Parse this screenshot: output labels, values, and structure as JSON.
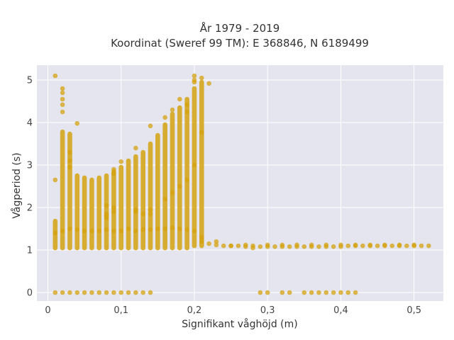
{
  "chart_data": {
    "type": "scatter",
    "title_lines": [
      "År 1979 - 2019",
      "Koordinat (Sweref 99 TM): E 368846, N 6189499"
    ],
    "xlabel": "Signifikant våghöjd (m)",
    "ylabel": "Vågperiod (s)",
    "xlim": [
      -0.015,
      0.54
    ],
    "ylim": [
      -0.2,
      5.35
    ],
    "x_ticks": [
      0,
      0.1,
      0.2,
      0.3,
      0.4,
      0.5
    ],
    "x_tick_labels": [
      "0",
      "0,1",
      "0,2",
      "0,3",
      "0,4",
      "0,5"
    ],
    "y_ticks": [
      0,
      1,
      2,
      3,
      4,
      5
    ],
    "y_tick_labels": [
      "0",
      "1",
      "2",
      "3",
      "4",
      "5"
    ],
    "grid": true,
    "plot_background": "#e5e5ef",
    "marker_color": "#d4a20f",
    "marker_opacity": 0.75,
    "columns": [
      {
        "x": 0.01,
        "min": 1.05,
        "max": 1.68
      },
      {
        "x": 0.02,
        "min": 1.05,
        "max": 3.78
      },
      {
        "x": 0.03,
        "min": 1.05,
        "max": 3.73
      },
      {
        "x": 0.04,
        "min": 1.05,
        "max": 2.75
      },
      {
        "x": 0.05,
        "min": 1.05,
        "max": 2.7
      },
      {
        "x": 0.06,
        "min": 1.05,
        "max": 2.65
      },
      {
        "x": 0.07,
        "min": 1.05,
        "max": 2.7
      },
      {
        "x": 0.08,
        "min": 1.05,
        "max": 2.75
      },
      {
        "x": 0.09,
        "min": 1.05,
        "max": 2.85
      },
      {
        "x": 0.1,
        "min": 1.05,
        "max": 2.95
      },
      {
        "x": 0.11,
        "min": 1.05,
        "max": 3.1
      },
      {
        "x": 0.12,
        "min": 1.05,
        "max": 3.2
      },
      {
        "x": 0.13,
        "min": 1.05,
        "max": 3.3
      },
      {
        "x": 0.14,
        "min": 1.05,
        "max": 3.5
      },
      {
        "x": 0.15,
        "min": 1.05,
        "max": 3.7
      },
      {
        "x": 0.16,
        "min": 1.05,
        "max": 3.95
      },
      {
        "x": 0.17,
        "min": 1.05,
        "max": 4.2
      },
      {
        "x": 0.18,
        "min": 1.05,
        "max": 4.35
      },
      {
        "x": 0.19,
        "min": 1.05,
        "max": 4.55
      },
      {
        "x": 0.2,
        "min": 1.1,
        "max": 4.8
      },
      {
        "x": 0.21,
        "min": 1.1,
        "max": 4.95
      }
    ],
    "points": [
      {
        "x": 0.01,
        "y": 5.1
      },
      {
        "x": 0.01,
        "y": 2.65
      },
      {
        "x": 0.02,
        "y": 4.8
      },
      {
        "x": 0.02,
        "y": 4.7
      },
      {
        "x": 0.02,
        "y": 4.55
      },
      {
        "x": 0.02,
        "y": 4.42
      },
      {
        "x": 0.02,
        "y": 4.25
      },
      {
        "x": 0.03,
        "y": 3.3
      },
      {
        "x": 0.03,
        "y": 3.1
      },
      {
        "x": 0.03,
        "y": 2.95
      },
      {
        "x": 0.04,
        "y": 3.98
      },
      {
        "x": 0.03,
        "y": 0.0
      },
      {
        "x": 0.02,
        "y": 0.0
      },
      {
        "x": 0.01,
        "y": 0.0
      },
      {
        "x": 0.04,
        "y": 0.0
      },
      {
        "x": 0.05,
        "y": 0.0
      },
      {
        "x": 0.06,
        "y": 0.0
      },
      {
        "x": 0.07,
        "y": 0.0
      },
      {
        "x": 0.08,
        "y": 0.0
      },
      {
        "x": 0.09,
        "y": 0.0
      },
      {
        "x": 0.1,
        "y": 0.0
      },
      {
        "x": 0.11,
        "y": 0.0
      },
      {
        "x": 0.12,
        "y": 0.0
      },
      {
        "x": 0.13,
        "y": 0.0
      },
      {
        "x": 0.14,
        "y": 0.0
      },
      {
        "x": 0.1,
        "y": 3.08
      },
      {
        "x": 0.12,
        "y": 3.4
      },
      {
        "x": 0.14,
        "y": 3.92
      },
      {
        "x": 0.16,
        "y": 4.12
      },
      {
        "x": 0.17,
        "y": 4.3
      },
      {
        "x": 0.18,
        "y": 4.55
      },
      {
        "x": 0.19,
        "y": 4.42
      },
      {
        "x": 0.19,
        "y": 4.25
      },
      {
        "x": 0.2,
        "y": 5.1
      },
      {
        "x": 0.2,
        "y": 5.0
      },
      {
        "x": 0.2,
        "y": 4.95
      },
      {
        "x": 0.21,
        "y": 5.05
      },
      {
        "x": 0.21,
        "y": 3.77
      },
      {
        "x": 0.22,
        "y": 4.92
      },
      {
        "x": 0.09,
        "y": 2.9
      },
      {
        "x": 0.09,
        "y": 2.8
      },
      {
        "x": 0.09,
        "y": 2.0
      },
      {
        "x": 0.09,
        "y": 1.9
      },
      {
        "x": 0.08,
        "y": 1.85
      },
      {
        "x": 0.08,
        "y": 1.8
      },
      {
        "x": 0.08,
        "y": 1.75
      },
      {
        "x": 0.08,
        "y": 2.05
      },
      {
        "x": 0.12,
        "y": 1.95
      },
      {
        "x": 0.12,
        "y": 1.9
      },
      {
        "x": 0.13,
        "y": 1.85
      },
      {
        "x": 0.14,
        "y": 1.95
      },
      {
        "x": 0.14,
        "y": 1.85
      },
      {
        "x": 0.16,
        "y": 2.2
      },
      {
        "x": 0.17,
        "y": 2.35
      },
      {
        "x": 0.18,
        "y": 2.5
      },
      {
        "x": 0.19,
        "y": 2.65
      },
      {
        "x": 0.2,
        "y": 3.0
      },
      {
        "x": 0.01,
        "y": 1.4
      },
      {
        "x": 0.02,
        "y": 1.45
      },
      {
        "x": 0.03,
        "y": 1.5
      },
      {
        "x": 0.04,
        "y": 1.48
      },
      {
        "x": 0.05,
        "y": 1.45
      },
      {
        "x": 0.06,
        "y": 1.45
      },
      {
        "x": 0.07,
        "y": 1.45
      },
      {
        "x": 0.08,
        "y": 1.48
      },
      {
        "x": 0.09,
        "y": 1.45
      },
      {
        "x": 0.1,
        "y": 1.45
      },
      {
        "x": 0.11,
        "y": 1.5
      },
      {
        "x": 0.12,
        "y": 1.45
      },
      {
        "x": 0.13,
        "y": 1.48
      },
      {
        "x": 0.14,
        "y": 1.48
      },
      {
        "x": 0.15,
        "y": 1.5
      },
      {
        "x": 0.16,
        "y": 1.5
      },
      {
        "x": 0.17,
        "y": 1.52
      },
      {
        "x": 0.18,
        "y": 1.5
      },
      {
        "x": 0.19,
        "y": 1.48
      },
      {
        "x": 0.2,
        "y": 1.45
      },
      {
        "x": 0.21,
        "y": 1.2
      },
      {
        "x": 0.22,
        "y": 1.15
      },
      {
        "x": 0.23,
        "y": 1.12
      },
      {
        "x": 0.24,
        "y": 1.1
      },
      {
        "x": 0.25,
        "y": 1.1
      },
      {
        "x": 0.26,
        "y": 1.1
      },
      {
        "x": 0.27,
        "y": 1.08
      },
      {
        "x": 0.28,
        "y": 1.05
      },
      {
        "x": 0.29,
        "y": 1.08
      },
      {
        "x": 0.3,
        "y": 1.08
      },
      {
        "x": 0.31,
        "y": 1.08
      },
      {
        "x": 0.32,
        "y": 1.08
      },
      {
        "x": 0.33,
        "y": 1.08
      },
      {
        "x": 0.34,
        "y": 1.08
      },
      {
        "x": 0.35,
        "y": 1.08
      },
      {
        "x": 0.36,
        "y": 1.08
      },
      {
        "x": 0.37,
        "y": 1.08
      },
      {
        "x": 0.38,
        "y": 1.08
      },
      {
        "x": 0.39,
        "y": 1.08
      },
      {
        "x": 0.4,
        "y": 1.08
      },
      {
        "x": 0.41,
        "y": 1.1
      },
      {
        "x": 0.42,
        "y": 1.1
      },
      {
        "x": 0.43,
        "y": 1.1
      },
      {
        "x": 0.44,
        "y": 1.1
      },
      {
        "x": 0.45,
        "y": 1.1
      },
      {
        "x": 0.46,
        "y": 1.1
      },
      {
        "x": 0.47,
        "y": 1.1
      },
      {
        "x": 0.48,
        "y": 1.1
      },
      {
        "x": 0.49,
        "y": 1.1
      },
      {
        "x": 0.5,
        "y": 1.1
      },
      {
        "x": 0.51,
        "y": 1.1
      },
      {
        "x": 0.52,
        "y": 1.1
      },
      {
        "x": 0.21,
        "y": 1.3
      },
      {
        "x": 0.23,
        "y": 1.2
      },
      {
        "x": 0.25,
        "y": 1.1
      },
      {
        "x": 0.27,
        "y": 1.12
      },
      {
        "x": 0.28,
        "y": 1.1
      },
      {
        "x": 0.3,
        "y": 1.12
      },
      {
        "x": 0.32,
        "y": 1.12
      },
      {
        "x": 0.34,
        "y": 1.12
      },
      {
        "x": 0.36,
        "y": 1.12
      },
      {
        "x": 0.38,
        "y": 1.12
      },
      {
        "x": 0.4,
        "y": 1.12
      },
      {
        "x": 0.42,
        "y": 1.12
      },
      {
        "x": 0.44,
        "y": 1.12
      },
      {
        "x": 0.46,
        "y": 1.12
      },
      {
        "x": 0.48,
        "y": 1.12
      },
      {
        "x": 0.5,
        "y": 1.12
      },
      {
        "x": 0.29,
        "y": 0.0
      },
      {
        "x": 0.3,
        "y": 0.0
      },
      {
        "x": 0.32,
        "y": 0.0
      },
      {
        "x": 0.33,
        "y": 0.0
      },
      {
        "x": 0.35,
        "y": 0.0
      },
      {
        "x": 0.36,
        "y": 0.0
      },
      {
        "x": 0.37,
        "y": 0.0
      },
      {
        "x": 0.38,
        "y": 0.0
      },
      {
        "x": 0.39,
        "y": 0.0
      },
      {
        "x": 0.4,
        "y": 0.0
      },
      {
        "x": 0.41,
        "y": 0.0
      },
      {
        "x": 0.42,
        "y": 0.0
      }
    ]
  }
}
